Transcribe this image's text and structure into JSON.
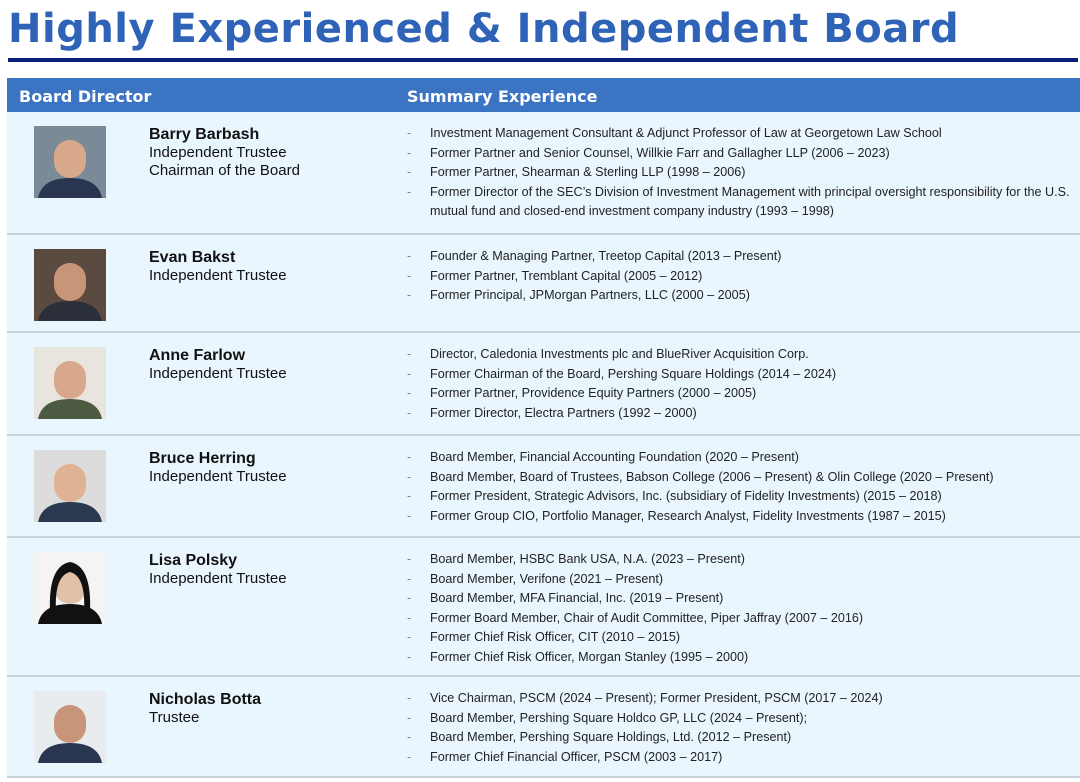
{
  "title": "Highly Experienced & Independent Board",
  "header": {
    "col1": "Board Director",
    "col2": "Summary Experience"
  },
  "directors": [
    {
      "name": "Barry Barbash",
      "roles": [
        "Independent Trustee",
        "Chairman of the Board"
      ],
      "experience": [
        "Investment Management Consultant & Adjunct Professor of Law at Georgetown Law School",
        "Former Partner and Senior Counsel, Willkie Farr and Gallagher LLP (2006 – 2023)",
        "Former Partner, Shearman & Sterling LLP (1998 – 2006)",
        "Former Director of the SEC’s Division of Investment Management with principal oversight responsibility for the U.S. mutual fund and closed-end investment company industry (1993 – 1998)"
      ]
    },
    {
      "name": "Evan Bakst",
      "roles": [
        "Independent Trustee"
      ],
      "experience": [
        "Founder & Managing Partner, Treetop Capital (2013 – Present)",
        "Former Partner, Tremblant Capital (2005 – 2012)",
        "Former Principal, JPMorgan Partners, LLC (2000 – 2005)"
      ]
    },
    {
      "name": "Anne Farlow",
      "roles": [
        "Independent Trustee"
      ],
      "experience": [
        "Director, Caledonia Investments plc and BlueRiver Acquisition Corp.",
        "Former Chairman of the Board, Pershing Square Holdings (2014 – 2024)",
        "Former Partner, Providence Equity Partners (2000 – 2005)",
        "Former Director, Electra Partners (1992 – 2000)"
      ]
    },
    {
      "name": "Bruce Herring",
      "roles": [
        "Independent Trustee"
      ],
      "experience": [
        "Board Member, Financial Accounting Foundation (2020 – Present)",
        "Board Member, Board of Trustees, Babson College (2006 – Present) & Olin College (2020 – Present)",
        "Former President, Strategic Advisors, Inc. (subsidiary of Fidelity Investments) (2015 – 2018)",
        "Former Group CIO, Portfolio Manager, Research Analyst, Fidelity Investments (1987 – 2015)"
      ]
    },
    {
      "name": "Lisa Polsky",
      "roles": [
        "Independent Trustee"
      ],
      "experience": [
        "Board Member, HSBC Bank USA, N.A. (2023 – Present)",
        "Board Member, Verifone (2021 – Present)",
        "Board Member, MFA Financial, Inc. (2019 – Present)",
        "Former Board Member, Chair of Audit Committee, Piper Jaffray (2007 – 2016)",
        "Former Chief Risk Officer, CIT (2010 – 2015)",
        "Former Chief Risk Officer, Morgan Stanley (1995 – 2000)"
      ]
    },
    {
      "name": "Nicholas Botta",
      "roles": [
        "Trustee"
      ],
      "experience": [
        "Vice Chairman, PSCM (2024 – Present); Former President, PSCM (2017 – 2024)",
        "Board Member, Pershing Square Holdco GP, LLC (2024 – Present);",
        "Board Member, Pershing Square Holdings, Ltd. (2012 – Present)",
        "Former Chief Financial Officer, PSCM (2003 – 2017)"
      ]
    }
  ],
  "colors": {
    "title": "#2f63b8",
    "header": "#3c74c4",
    "row": "#e9f6fd",
    "rule": "#0c1f78"
  }
}
